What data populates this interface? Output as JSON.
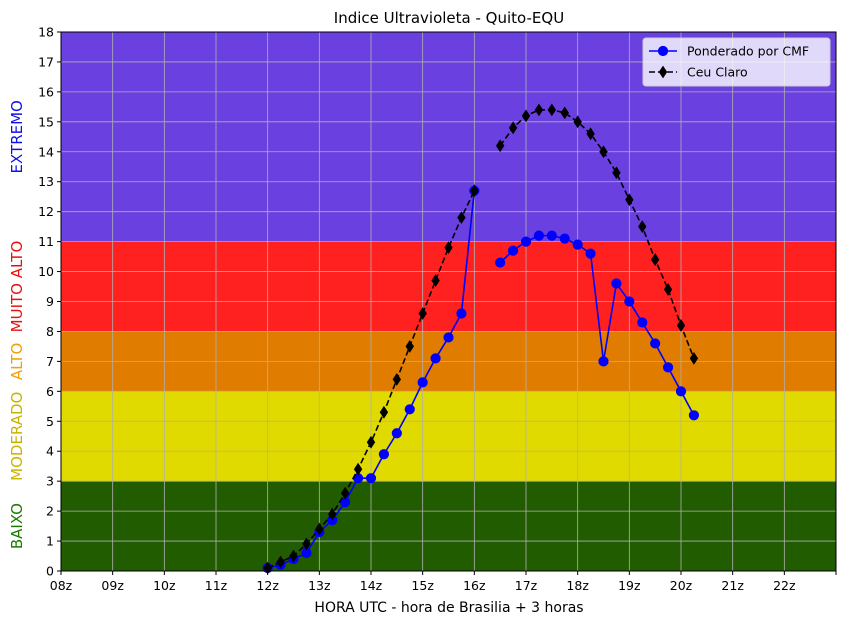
{
  "chart_data": {
    "type": "line",
    "title": "Indice Ultravioleta - Quito-EQU",
    "xlabel": "HORA UTC - hora de Brasilia + 3 horas",
    "ylabel": "",
    "xlim": [
      8,
      23
    ],
    "ylim": [
      0,
      18
    ],
    "x_ticks": [
      {
        "value": 8,
        "label": "08z"
      },
      {
        "value": 9,
        "label": "09z"
      },
      {
        "value": 10,
        "label": "10z"
      },
      {
        "value": 11,
        "label": "11z"
      },
      {
        "value": 12,
        "label": "12z"
      },
      {
        "value": 13,
        "label": "13z"
      },
      {
        "value": 14,
        "label": "14z"
      },
      {
        "value": 15,
        "label": "15z"
      },
      {
        "value": 16,
        "label": "16z"
      },
      {
        "value": 17,
        "label": "17z"
      },
      {
        "value": 18,
        "label": "18z"
      },
      {
        "value": 19,
        "label": "19z"
      },
      {
        "value": 20,
        "label": "20z"
      },
      {
        "value": 21,
        "label": "21z"
      },
      {
        "value": 22,
        "label": "22z"
      },
      {
        "value": 23,
        "label": ""
      }
    ],
    "y_ticks": [
      0,
      1,
      2,
      3,
      4,
      5,
      6,
      7,
      8,
      9,
      10,
      11,
      12,
      13,
      14,
      15,
      16,
      17,
      18
    ],
    "grid": true,
    "legend_position": "top-right",
    "bands": [
      {
        "name": "BAIXO",
        "from": 0,
        "to": 3,
        "fill": "#225c00",
        "label_color": "#1a7a00"
      },
      {
        "name": "MODERADO",
        "from": 3,
        "to": 6,
        "fill": "#e0da00",
        "label_color": "#c8b400"
      },
      {
        "name": "ALTO",
        "from": 6,
        "to": 8,
        "fill": "#e07d00",
        "label_color": "#f0a000"
      },
      {
        "name": "MUITO ALTO",
        "from": 8,
        "to": 11,
        "fill": "#ff2020",
        "label_color": "#e81010"
      },
      {
        "name": "EXTREMO",
        "from": 11,
        "to": 18,
        "fill": "#6a40e0",
        "label_color": "#1010e8"
      }
    ],
    "series": [
      {
        "name": "Ponderado por CMF",
        "color": "#0000ff",
        "marker": "circle",
        "linestyle": "solid",
        "segments": [
          [
            [
              12.0,
              0.1
            ],
            [
              12.25,
              0.2
            ],
            [
              12.5,
              0.4
            ],
            [
              12.75,
              0.6
            ],
            [
              13.0,
              1.3
            ],
            [
              13.25,
              1.7
            ],
            [
              13.5,
              2.3
            ],
            [
              13.75,
              3.1
            ],
            [
              14.0,
              3.1
            ],
            [
              14.25,
              3.9
            ],
            [
              14.5,
              4.6
            ],
            [
              14.75,
              5.4
            ],
            [
              15.0,
              6.3
            ],
            [
              15.25,
              7.1
            ],
            [
              15.5,
              7.8
            ],
            [
              15.75,
              8.6
            ],
            [
              16.0,
              12.7
            ]
          ],
          [
            [
              16.5,
              10.3
            ],
            [
              16.75,
              10.7
            ],
            [
              17.0,
              11.0
            ],
            [
              17.25,
              11.2
            ],
            [
              17.5,
              11.2
            ],
            [
              17.75,
              11.1
            ],
            [
              18.0,
              10.9
            ],
            [
              18.25,
              10.6
            ],
            [
              18.5,
              7.0
            ],
            [
              18.75,
              9.6
            ],
            [
              19.0,
              9.0
            ],
            [
              19.25,
              8.3
            ],
            [
              19.5,
              7.6
            ],
            [
              19.75,
              6.8
            ],
            [
              20.0,
              6.0
            ],
            [
              20.25,
              5.2
            ]
          ]
        ]
      },
      {
        "name": "Ceu Claro",
        "color": "#000000",
        "marker": "diamond",
        "linestyle": "dashed",
        "segments": [
          [
            [
              12.0,
              0.1
            ],
            [
              12.25,
              0.3
            ],
            [
              12.5,
              0.5
            ],
            [
              12.75,
              0.9
            ],
            [
              13.0,
              1.4
            ],
            [
              13.25,
              1.9
            ],
            [
              13.5,
              2.6
            ],
            [
              13.75,
              3.4
            ],
            [
              14.0,
              4.3
            ],
            [
              14.25,
              5.3
            ],
            [
              14.5,
              6.4
            ],
            [
              14.75,
              7.5
            ],
            [
              15.0,
              8.6
            ],
            [
              15.25,
              9.7
            ],
            [
              15.5,
              10.8
            ],
            [
              15.75,
              11.8
            ],
            [
              16.0,
              12.7
            ]
          ],
          [
            [
              16.5,
              14.2
            ],
            [
              16.75,
              14.8
            ],
            [
              17.0,
              15.2
            ],
            [
              17.25,
              15.4
            ],
            [
              17.5,
              15.4
            ],
            [
              17.75,
              15.3
            ],
            [
              18.0,
              15.0
            ],
            [
              18.25,
              14.6
            ],
            [
              18.5,
              14.0
            ],
            [
              18.75,
              13.3
            ],
            [
              19.0,
              12.4
            ],
            [
              19.25,
              11.5
            ],
            [
              19.5,
              10.4
            ],
            [
              19.75,
              9.4
            ],
            [
              20.0,
              8.2
            ],
            [
              20.25,
              7.1
            ]
          ]
        ]
      }
    ]
  }
}
